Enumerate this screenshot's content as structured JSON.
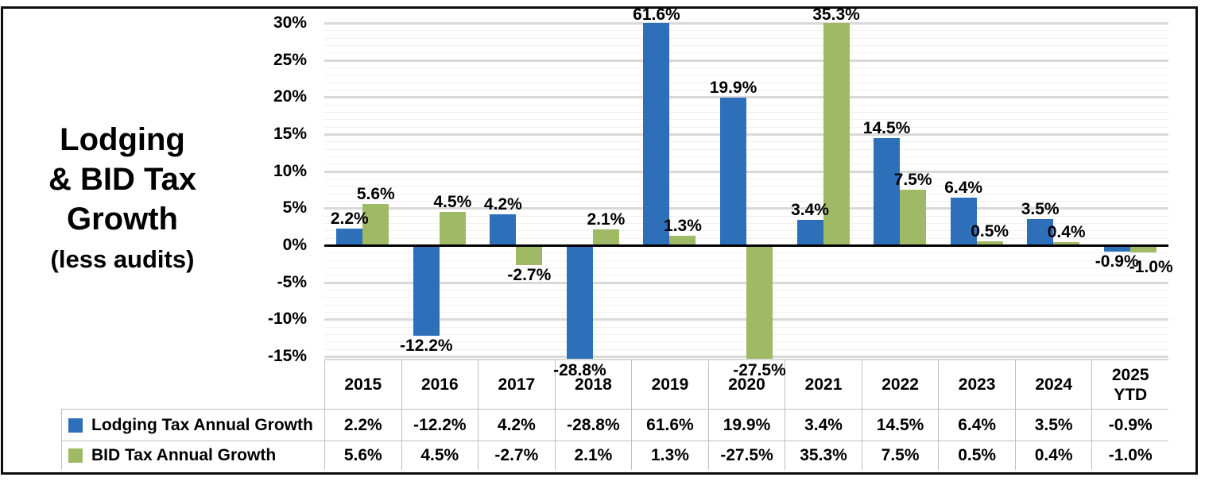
{
  "chart": {
    "title": "Lodging & BID Tax Growth",
    "title_lines": [
      "Lodging",
      "& BID Tax",
      "Growth"
    ],
    "subtitle": "(less audits)",
    "y_axis_tick_labels": [
      "30%",
      "25%",
      "20%",
      "15%",
      "10%",
      "5%",
      "0%",
      "-5%",
      "-10%",
      "-15%"
    ]
  },
  "chart_data": {
    "type": "bar",
    "title": "Lodging & BID Tax Growth (less audits)",
    "categories": [
      "2015",
      "2016",
      "2017",
      "2018",
      "2019",
      "2020",
      "2021",
      "2022",
      "2023",
      "2024",
      "2025 YTD"
    ],
    "series": [
      {
        "name": "Lodging Tax Annual Growth",
        "color": "#2e6fb9",
        "values": [
          2.2,
          -12.2,
          4.2,
          -28.8,
          61.6,
          19.9,
          3.4,
          14.5,
          6.4,
          3.5,
          -0.9
        ]
      },
      {
        "name": "BID Tax Annual Growth",
        "color": "#9fb965",
        "values": [
          5.6,
          4.5,
          -2.7,
          2.1,
          1.3,
          -27.5,
          35.3,
          7.5,
          0.5,
          0.4,
          -1.0
        ]
      }
    ],
    "ylim": [
      -15,
      30
    ],
    "y_tick_step": 5,
    "y_minor_step": 1,
    "value_suffix": "%",
    "data_labels": true,
    "grid": true,
    "legend_position": "table-left",
    "xlabel": "",
    "ylabel": ""
  },
  "table": {
    "column_headers": [
      "2015",
      "2016",
      "2017",
      "2018",
      "2019",
      "2020",
      "2021",
      "2022",
      "2023",
      "2024",
      "2025 YTD"
    ],
    "rows": [
      {
        "label": "Lodging Tax Annual Growth",
        "swatch_color": "#2e6fb9",
        "values": [
          "2.2%",
          "-12.2%",
          "4.2%",
          "-28.8%",
          "61.6%",
          "19.9%",
          "3.4%",
          "14.5%",
          "6.4%",
          "3.5%",
          "-0.9%"
        ]
      },
      {
        "label": "BID Tax Annual Growth",
        "swatch_color": "#9fb965",
        "values": [
          "5.6%",
          "4.5%",
          "-2.7%",
          "2.1%",
          "1.3%",
          "-27.5%",
          "35.3%",
          "7.5%",
          "0.5%",
          "0.4%",
          "-1.0%"
        ]
      }
    ]
  },
  "colors": {
    "lodging_blue": "#2e6fb9",
    "bid_green": "#9fb965",
    "grid_major": "#d9d9d9"
  }
}
